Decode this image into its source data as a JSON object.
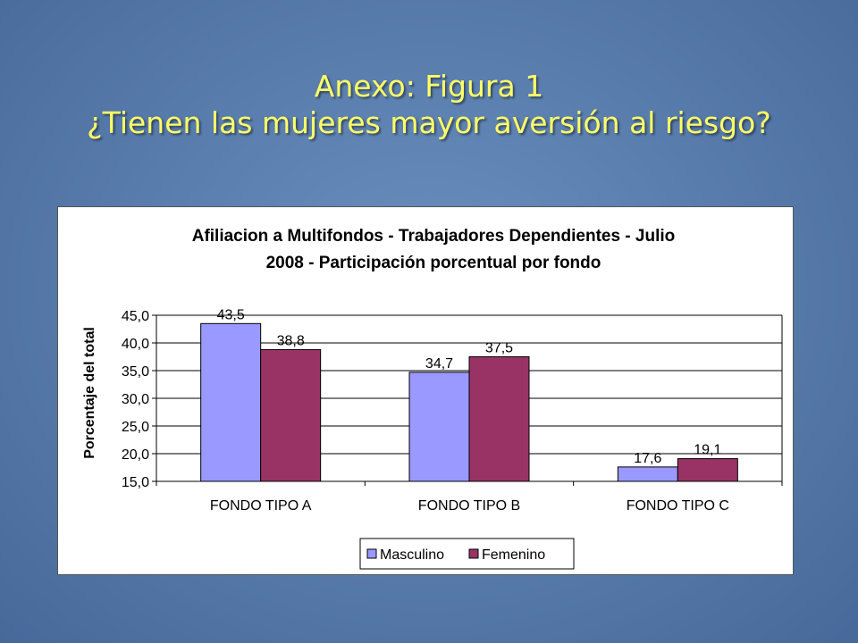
{
  "slide": {
    "title_line1": "Anexo: Figura 1",
    "title_line2": "¿Tienen las mujeres mayor aversión al riesgo?"
  },
  "chart_data": {
    "type": "bar",
    "title_line1": "Afiliacion a Multifondos - Trabajadores Dependientes - Julio",
    "title_line2": "2008 - Participación porcentual por fondo",
    "xlabel": "",
    "ylabel": "Porcentaje del total",
    "categories": [
      "FONDO TIPO A",
      "FONDO TIPO B",
      "FONDO TIPO C"
    ],
    "series": [
      {
        "name": "Masculino",
        "values": [
          43.5,
          34.7,
          17.6
        ],
        "labels": [
          "43,5",
          "34,7",
          "17,6"
        ],
        "color": "#9999ff"
      },
      {
        "name": "Femenino",
        "values": [
          38.8,
          37.5,
          19.1
        ],
        "labels": [
          "38,8",
          "37,5",
          "19,1"
        ],
        "color": "#993366"
      }
    ],
    "ylim": [
      15,
      45
    ],
    "yticks": [
      15,
      20,
      25,
      30,
      35,
      40,
      45
    ],
    "ytick_labels": [
      "15,0",
      "20,0",
      "25,0",
      "30,0",
      "35,0",
      "40,0",
      "45,0"
    ],
    "grid": true,
    "legend_position": "bottom"
  }
}
